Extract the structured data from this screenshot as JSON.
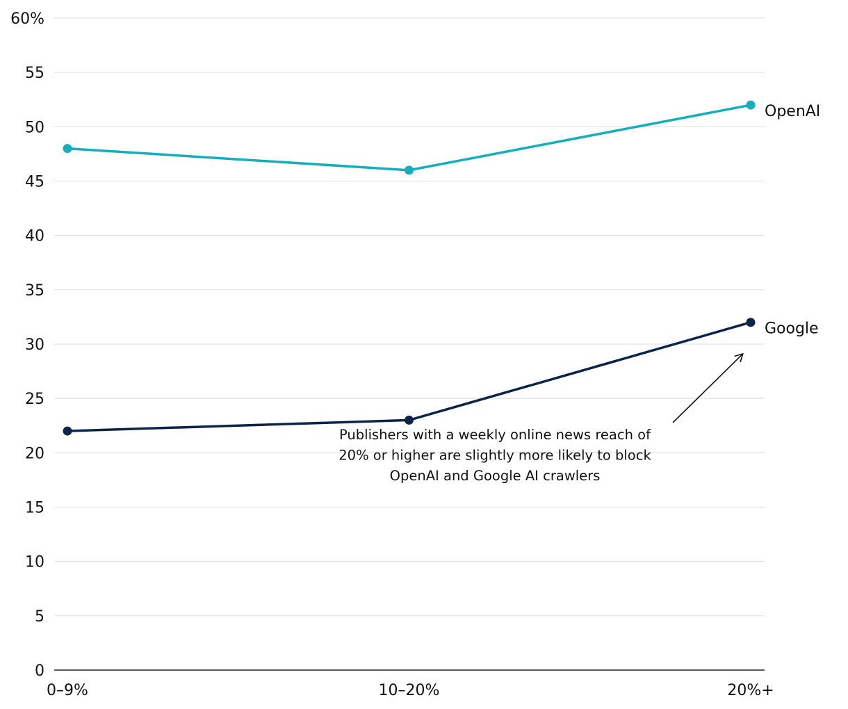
{
  "chart_data": {
    "type": "line",
    "categories": [
      "0–9%",
      "10–20%",
      "20%+"
    ],
    "series": [
      {
        "name": "OpenAI",
        "values": [
          48,
          46,
          52
        ],
        "color": "#14aebd"
      },
      {
        "name": "Google",
        "values": [
          22,
          23,
          32
        ],
        "color": "#0c2447"
      }
    ],
    "ylim": [
      0,
      60
    ],
    "yticks": [
      0,
      5,
      10,
      15,
      20,
      25,
      30,
      35,
      40,
      45,
      50,
      55,
      60
    ],
    "ytick_labels": [
      "0",
      "5",
      "10",
      "15",
      "20",
      "25",
      "30",
      "35",
      "40",
      "45",
      "50",
      "55",
      "60%"
    ],
    "grid": "horizontal",
    "annotation": {
      "lines": [
        "Publishers with a weekly online news reach of",
        "20% or higher are slightly more likely to block",
        "OpenAI and Google AI crawlers"
      ],
      "points_to": {
        "series": "Google",
        "category": "20%+"
      }
    }
  }
}
